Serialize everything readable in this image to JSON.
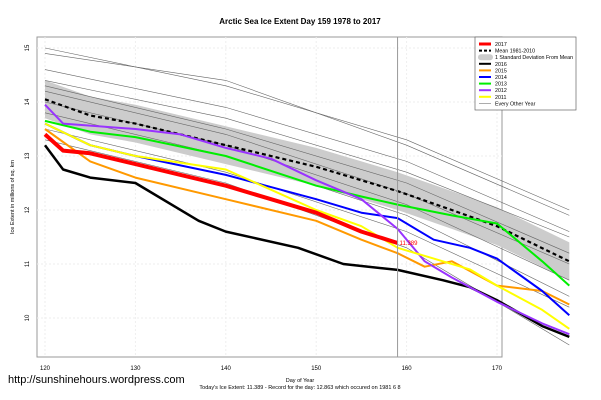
{
  "chart_data": {
    "type": "line",
    "title": "Arctic Sea Ice Extent Day 159 1978 to 2017",
    "xlabel": "Day of Year",
    "ylabel": "Ice Extent in millions of sq. km",
    "xlim": [
      118,
      179
    ],
    "ylim": [
      9.3,
      15.2
    ],
    "x_ticks": [
      120,
      130,
      140,
      150,
      160,
      170
    ],
    "y_ticks": [
      10,
      11,
      12,
      13,
      14,
      15
    ],
    "grid": true,
    "marker_day": 159,
    "current_label": "11.389",
    "legend_position": "top-right",
    "legend": [
      "2017",
      "Mean 1981-2010",
      "1 Standard Deviation From Mean",
      "2016",
      "2015",
      "2014",
      "2013",
      "2012",
      "2011",
      "Every Other Year"
    ],
    "std_band": 0.35,
    "mean": {
      "name": "Mean 1981-2010",
      "color": "#000000",
      "x": [
        120,
        125,
        130,
        140,
        150,
        155,
        159,
        165,
        170,
        178
      ],
      "y": [
        14.05,
        13.75,
        13.6,
        13.2,
        12.8,
        12.55,
        12.35,
        12.0,
        11.7,
        11.05
      ]
    },
    "series": [
      {
        "name": "2016",
        "color": "#000000",
        "width": 2.5,
        "x": [
          120,
          122,
          125,
          130,
          137,
          140,
          148,
          153,
          159,
          164,
          167,
          170,
          175,
          178
        ],
        "y": [
          13.2,
          12.75,
          12.6,
          12.5,
          11.8,
          11.6,
          11.3,
          11.0,
          10.89,
          10.7,
          10.57,
          10.33,
          9.85,
          9.65
        ]
      },
      {
        "name": "2015",
        "color": "#ff9900",
        "width": 2,
        "x": [
          120,
          125,
          130,
          140,
          150,
          155,
          159,
          162,
          165,
          170,
          175,
          178
        ],
        "y": [
          13.5,
          12.9,
          12.6,
          12.2,
          11.8,
          11.45,
          11.2,
          10.95,
          11.05,
          10.6,
          10.5,
          10.25
        ]
      },
      {
        "name": "2014",
        "color": "#0000ff",
        "width": 2,
        "x": [
          120,
          125,
          130,
          140,
          150,
          155,
          159,
          163,
          167,
          170,
          175,
          178
        ],
        "y": [
          13.6,
          13.2,
          13.0,
          12.65,
          12.2,
          11.95,
          11.85,
          11.45,
          11.3,
          11.1,
          10.5,
          10.05
        ]
      },
      {
        "name": "2013",
        "color": "#00ee00",
        "width": 2,
        "x": [
          120,
          125,
          130,
          140,
          150,
          155,
          159,
          165,
          170,
          175,
          178
        ],
        "y": [
          13.65,
          13.45,
          13.35,
          13.0,
          12.45,
          12.25,
          12.1,
          11.9,
          11.75,
          11.05,
          10.6
        ]
      },
      {
        "name": "2012",
        "color": "#9933ff",
        "width": 2,
        "x": [
          120,
          122,
          130,
          135,
          140,
          145,
          150,
          155,
          159,
          162,
          165,
          170,
          175,
          178
        ],
        "y": [
          13.95,
          13.6,
          13.5,
          13.4,
          13.15,
          12.95,
          12.55,
          12.2,
          11.65,
          11.05,
          10.75,
          10.3,
          9.9,
          9.7
        ]
      },
      {
        "name": "2011",
        "color": "#ffff00",
        "width": 2,
        "x": [
          120,
          125,
          130,
          140,
          150,
          155,
          159,
          163,
          167,
          170,
          175,
          178
        ],
        "y": [
          13.6,
          13.2,
          13.0,
          12.75,
          12.0,
          11.7,
          11.3,
          11.1,
          10.9,
          10.6,
          10.15,
          9.8
        ]
      },
      {
        "name": "2017",
        "color": "#ff0000",
        "width": 4,
        "x": [
          120,
          122,
          125,
          130,
          135,
          140,
          145,
          150,
          155,
          159
        ],
        "y": [
          13.4,
          13.1,
          13.05,
          12.85,
          12.65,
          12.45,
          12.2,
          11.95,
          11.6,
          11.389
        ]
      }
    ],
    "other_years": [
      {
        "x": [
          120,
          140,
          160,
          178
        ],
        "y": [
          15.0,
          14.3,
          13.3,
          12.0
        ]
      },
      {
        "x": [
          120,
          140,
          160,
          178
        ],
        "y": [
          14.9,
          14.4,
          13.2,
          11.9
        ]
      },
      {
        "x": [
          120,
          140,
          160,
          178
        ],
        "y": [
          14.6,
          13.9,
          12.9,
          11.6
        ]
      },
      {
        "x": [
          120,
          140,
          160,
          178
        ],
        "y": [
          14.4,
          13.7,
          12.7,
          11.5
        ]
      },
      {
        "x": [
          120,
          140,
          160,
          178
        ],
        "y": [
          14.3,
          13.5,
          12.5,
          11.2
        ]
      },
      {
        "x": [
          120,
          140,
          160,
          178
        ],
        "y": [
          14.2,
          13.4,
          12.3,
          11.0
        ]
      },
      {
        "x": [
          120,
          140,
          160,
          178
        ],
        "y": [
          14.0,
          13.2,
          12.1,
          10.7
        ]
      },
      {
        "x": [
          120,
          140,
          160,
          178
        ],
        "y": [
          13.8,
          13.0,
          11.9,
          10.4
        ]
      },
      {
        "x": [
          120,
          140,
          160,
          178
        ],
        "y": [
          13.5,
          12.7,
          11.6,
          10.2
        ]
      },
      {
        "x": [
          120,
          140,
          160,
          178
        ],
        "y": [
          13.3,
          12.5,
          11.3,
          9.5
        ]
      }
    ]
  },
  "watermark": "http://sunshinehours.wordpress.com",
  "footer": "Today's Ice Extent: 11.389  - Record for the day: 12.863 which occured on 1981 6 8"
}
